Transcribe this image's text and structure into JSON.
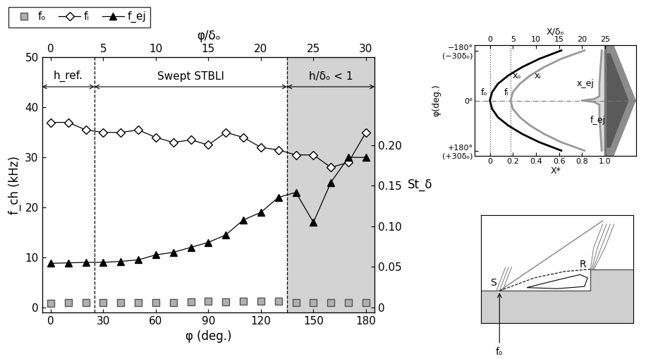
{
  "chart_data": [
    {
      "type": "line",
      "xlabel": "φ (deg.)",
      "ylabel": "f_ch (kHz)",
      "x2label": "φ/δₒ",
      "y2label": "St_δ",
      "x": [
        0,
        10,
        20,
        30,
        40,
        50,
        60,
        70,
        80,
        90,
        100,
        110,
        120,
        130,
        140,
        150,
        160,
        170,
        180
      ],
      "xlim": [
        -5,
        185
      ],
      "xticks": [
        0,
        30,
        60,
        90,
        120,
        150,
        180
      ],
      "ylim": [
        -1,
        50
      ],
      "yticks": [
        0,
        10,
        20,
        30,
        40,
        50
      ],
      "x2lim": [
        -0.83,
        30.83
      ],
      "x2ticks": [
        0,
        5,
        10,
        15,
        20,
        25,
        30
      ],
      "y2lim": [
        -0.006,
        0.308
      ],
      "y2ticks": [
        0,
        0.05,
        {
          "value": 0.1,
          "label": "0.10"
        },
        0.15,
        {
          "value": 0.2,
          "label": "0.20"
        }
      ],
      "legend": "upper left",
      "series": [
        {
          "name": "fₒ",
          "color": "#b0b0b0",
          "marker": "square",
          "line_style": "none",
          "values": [
            0.8,
            0.9,
            0.9,
            0.9,
            0.9,
            0.9,
            1.0,
            1.0,
            1.1,
            1.2,
            1.1,
            1.2,
            1.3,
            1.3,
            1.0,
            1.0,
            1.0,
            1.0,
            1.0
          ]
        },
        {
          "name": "fᵢ",
          "color": "#ffffff",
          "marker": "diamond",
          "line_style": "solid",
          "values": [
            37,
            37,
            35.5,
            35,
            35,
            35.5,
            34,
            33,
            33.5,
            32.5,
            35,
            34,
            32,
            31.5,
            30.5,
            30.5,
            28,
            29,
            35
          ]
        },
        {
          "name": "f_ej",
          "color": "#000000",
          "marker": "triangle",
          "line_style": "solid",
          "values": [
            8.8,
            8.9,
            9,
            9,
            9.2,
            9.5,
            10.5,
            11,
            12,
            13,
            14.5,
            17.5,
            19,
            22,
            23,
            17,
            25,
            30,
            30
          ]
        }
      ],
      "regions": [
        {
          "label": "h_ref.",
          "start": -5,
          "end": 25
        },
        {
          "label": "Swept STBLI",
          "start": 25,
          "end": 135
        },
        {
          "label": "h/δₒ < 1",
          "start": 135,
          "end": 185,
          "shaded": true
        }
      ]
    },
    {
      "type": "line",
      "xlabel": "X*",
      "x2label": "X/δₒ",
      "ylabel": "φ(deg.)",
      "xlim": [
        -0.13,
        1.27
      ],
      "xticks": [
        0,
        0.2,
        0.4,
        0.6,
        0.8,
        {
          "value": 1,
          "label": "1.0"
        }
      ],
      "x2lim": [
        -3.25,
        31.75
      ],
      "x2ticks": [
        0,
        5,
        10,
        15,
        20,
        25
      ],
      "ylim": [
        200,
        -200
      ],
      "yticks": [
        {
          "value": -180,
          "label": "−180°\n(−30δₒ)"
        },
        {
          "value": 0,
          "label": "0°"
        },
        {
          "value": 180,
          "label": "+180°\n(+30δₒ)"
        }
      ],
      "boundary": 1,
      "centerline": 0,
      "frequency_marks": [
        {
          "label": "fₒ",
          "x": 0
        },
        {
          "label": "fᵢ",
          "x": 0.18
        }
      ],
      "series": [
        {
          "name": "xₒ",
          "color": "#000000",
          "y": [
            -180,
            -150,
            -120,
            -90,
            -60,
            -30,
            0,
            30,
            60,
            90,
            120,
            150,
            180
          ],
          "x": [
            0.62,
            0.43,
            0.28,
            0.16,
            0.07,
            0.02,
            0,
            0.02,
            0.07,
            0.16,
            0.28,
            0.43,
            0.62
          ]
        },
        {
          "name": "xᵢ",
          "color": "#999999",
          "y": [
            -180,
            -150,
            -120,
            -90,
            -60,
            -30,
            0,
            30,
            60,
            90,
            120,
            150,
            180
          ],
          "x": [
            0.82,
            0.62,
            0.47,
            0.35,
            0.26,
            0.2,
            0.18,
            0.2,
            0.26,
            0.35,
            0.47,
            0.62,
            0.82
          ]
        },
        {
          "name": "x_ej",
          "color": "#999999",
          "mark_label": "f_ej",
          "y": [
            -180,
            -120,
            -60,
            -15,
            -5,
            0,
            5,
            15,
            60,
            120,
            180
          ],
          "x": [
            0.97,
            0.96,
            0.95,
            0.95,
            0.9,
            0.8,
            0.9,
            0.95,
            0.95,
            0.96,
            0.97
          ]
        }
      ]
    }
  ],
  "diagram": {
    "separation": "S",
    "reattachment": "R",
    "frequency": "fₒ"
  }
}
